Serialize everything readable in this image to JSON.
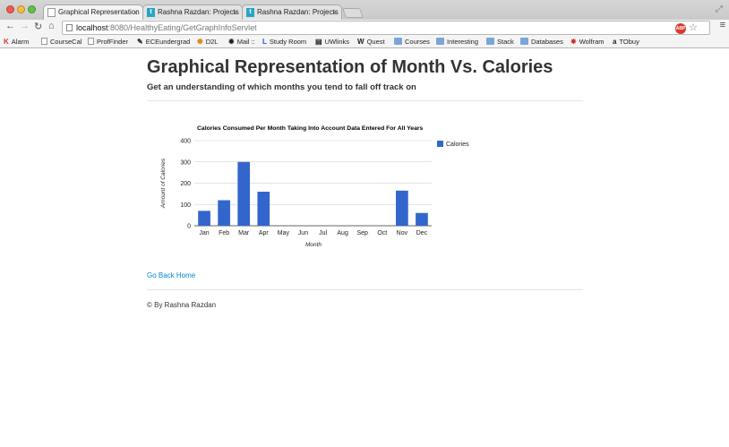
{
  "browser": {
    "tabs": [
      {
        "title": "Graphical Representation",
        "active": true,
        "icon": "document-icon"
      },
      {
        "title": "Rashna Razdan: Projects",
        "active": false,
        "icon": "tumblr-icon"
      },
      {
        "title": "Rashna Razdan: Projects",
        "active": false,
        "icon": "tumblr-icon"
      }
    ],
    "tab_close": "×",
    "url": {
      "host": "localhost",
      "path": ":8080/HealthyEating/GetGraphInfoServlet"
    },
    "abp": "ABP",
    "bookmarks": [
      {
        "label": "Alarm",
        "glyph": "K",
        "icon": "k-icon"
      },
      {
        "label": "CourseCal",
        "icon": "document-icon"
      },
      {
        "label": "ProfFinder",
        "icon": "document-icon"
      },
      {
        "label": "ECEundergrad",
        "glyph": "✎",
        "icon": "pencil-icon"
      },
      {
        "label": "D2L",
        "glyph": "✺",
        "icon": "d2l-icon"
      },
      {
        "label": "Mail ::",
        "glyph": "✹",
        "icon": "mail-icon"
      },
      {
        "label": "Study Room",
        "glyph": "L",
        "icon": "library-icon"
      },
      {
        "label": "UWlinks",
        "glyph": "▤",
        "icon": "uwlinks-icon"
      },
      {
        "label": "Quest",
        "glyph": "W",
        "icon": "quest-icon"
      },
      {
        "label": "Courses",
        "icon": "folder-icon"
      },
      {
        "label": "Interesting",
        "icon": "folder-icon"
      },
      {
        "label": "Stack",
        "icon": "folder-icon"
      },
      {
        "label": "Databases",
        "icon": "folder-icon"
      },
      {
        "label": "Wolfram",
        "glyph": "✸",
        "icon": "wolfram-icon"
      },
      {
        "label": "TObuy",
        "glyph": "a",
        "icon": "amazon-icon"
      }
    ]
  },
  "page": {
    "title": "Graphical Representation of Month Vs. Calories",
    "subtitle": "Get an understanding of which months you tend to fall off track on",
    "go_home": "Go Back Home",
    "footer": "© By Rashna Razdan"
  },
  "colors": {
    "bar": "#3366cc",
    "link": "#0088cc"
  },
  "chart_data": {
    "type": "bar",
    "title": "Calories Consumed Per Month Taking Into Account Data Entered For All Years",
    "xlabel": "Month",
    "ylabel": "Amount of Calories",
    "categories": [
      "Jan",
      "Feb",
      "Mar",
      "Apr",
      "May",
      "Jun",
      "Jul",
      "Aug",
      "Sep",
      "Oct",
      "Nov",
      "Dec"
    ],
    "series": [
      {
        "name": "Calories",
        "values": [
          70,
          120,
          300,
          160,
          0,
          0,
          0,
          0,
          0,
          0,
          165,
          60
        ]
      }
    ],
    "ylim": [
      0,
      400
    ],
    "yticks": [
      0,
      100,
      200,
      300,
      400
    ],
    "grid": true,
    "legend": "right"
  }
}
